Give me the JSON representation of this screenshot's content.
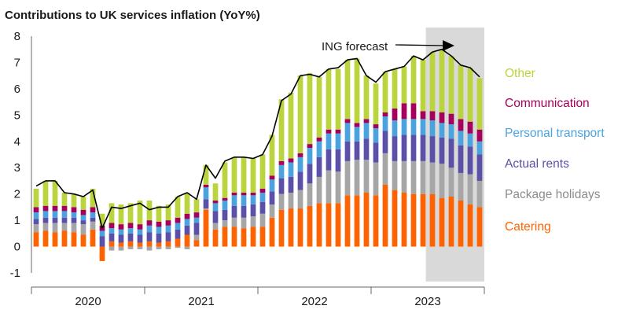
{
  "chart_data": {
    "type": "bar",
    "title": "Contributions to UK services inflation (YoY%)",
    "ylim": [
      -1,
      8
    ],
    "yticks": [
      8,
      7,
      6,
      5,
      4,
      3,
      2,
      1,
      0,
      -1
    ],
    "year_labels": [
      "2020",
      "2021",
      "2022",
      "2023"
    ],
    "months": [
      "Jan-2020",
      "Feb-2020",
      "Mar-2020",
      "Apr-2020",
      "May-2020",
      "Jun-2020",
      "Jul-2020",
      "Aug-2020",
      "Sep-2020",
      "Oct-2020",
      "Nov-2020",
      "Dec-2020",
      "Jan-2021",
      "Feb-2021",
      "Mar-2021",
      "Apr-2021",
      "May-2021",
      "Jun-2021",
      "Jul-2021",
      "Aug-2021",
      "Sep-2021",
      "Oct-2021",
      "Nov-2021",
      "Dec-2021",
      "Jan-2022",
      "Feb-2022",
      "Mar-2022",
      "Apr-2022",
      "May-2022",
      "Jun-2022",
      "Jul-2022",
      "Aug-2022",
      "Sep-2022",
      "Oct-2022",
      "Nov-2022",
      "Dec-2022",
      "Jan-2023",
      "Feb-2023",
      "Mar-2023",
      "Apr-2023",
      "May-2023",
      "Jun-2023",
      "Jul-2023",
      "Aug-2023",
      "Sep-2023",
      "Oct-2023",
      "Nov-2023",
      "Dec-2023"
    ],
    "series": [
      {
        "name": "Catering",
        "color": "#ff6200",
        "values": [
          0.55,
          0.6,
          0.55,
          0.6,
          0.55,
          0.45,
          0.65,
          -0.55,
          0.2,
          0.15,
          0.2,
          0.15,
          0.2,
          0.15,
          0.2,
          0.3,
          0.45,
          0.25,
          1.4,
          0.65,
          0.75,
          0.75,
          0.7,
          0.75,
          0.75,
          1.1,
          1.4,
          1.45,
          1.45,
          1.55,
          1.65,
          1.65,
          1.65,
          1.95,
          1.95,
          2.05,
          1.95,
          2.35,
          2.15,
          2.05,
          2.0,
          2.0,
          2.0,
          1.85,
          1.9,
          1.75,
          1.6,
          1.5
        ]
      },
      {
        "name": "Package holidays",
        "color": "#a6a6a6",
        "values": [
          0.3,
          0.3,
          0.35,
          0.3,
          0.35,
          0.4,
          0.3,
          0.0,
          -0.15,
          -0.15,
          -0.1,
          -0.1,
          -0.15,
          -0.1,
          -0.1,
          -0.05,
          -0.1,
          0.2,
          0.05,
          0.25,
          0.25,
          0.35,
          0.4,
          0.4,
          0.5,
          0.5,
          0.6,
          0.6,
          0.7,
          0.85,
          1.0,
          1.25,
          1.2,
          1.3,
          1.35,
          1.25,
          1.25,
          1.2,
          1.1,
          1.2,
          1.25,
          1.25,
          1.2,
          1.3,
          1.1,
          1.05,
          1.15,
          1.0
        ]
      },
      {
        "name": "Actual rents",
        "color": "#5a50a8",
        "values": [
          0.2,
          0.2,
          0.2,
          0.2,
          0.2,
          0.15,
          0.15,
          0.4,
          0.3,
          0.3,
          0.3,
          0.3,
          0.35,
          0.35,
          0.35,
          0.35,
          0.35,
          0.45,
          0.35,
          0.45,
          0.4,
          0.45,
          0.45,
          0.45,
          0.45,
          0.5,
          0.6,
          0.6,
          0.7,
          0.75,
          0.75,
          0.8,
          0.85,
          0.75,
          0.7,
          0.8,
          0.75,
          0.85,
          0.95,
          1.0,
          1.0,
          1.0,
          1.0,
          1.0,
          1.1,
          1.05,
          1.05,
          1.0
        ]
      },
      {
        "name": "Personal transport",
        "color": "#4aa3df",
        "values": [
          0.25,
          0.25,
          0.25,
          0.25,
          0.2,
          0.2,
          0.2,
          0.2,
          0.2,
          0.2,
          0.2,
          0.2,
          0.25,
          0.25,
          0.25,
          0.25,
          0.25,
          0.2,
          0.45,
          0.3,
          0.35,
          0.4,
          0.4,
          0.35,
          0.35,
          0.45,
          0.5,
          0.55,
          0.55,
          0.6,
          0.6,
          0.6,
          0.6,
          0.7,
          0.55,
          0.6,
          0.55,
          0.55,
          0.6,
          0.6,
          0.6,
          0.6,
          0.6,
          0.55,
          0.55,
          0.55,
          0.5,
          0.5
        ]
      },
      {
        "name": "Communication",
        "color": "#a6005c",
        "values": [
          0.2,
          0.2,
          0.2,
          0.2,
          0.2,
          0.2,
          0.2,
          0.2,
          0.2,
          0.2,
          0.2,
          0.2,
          0.2,
          0.2,
          0.2,
          0.2,
          0.2,
          0.2,
          0.1,
          0.1,
          0.1,
          0.1,
          0.1,
          0.1,
          0.15,
          0.15,
          0.15,
          0.15,
          0.15,
          0.15,
          0.15,
          0.15,
          0.15,
          0.15,
          0.15,
          0.15,
          0.15,
          0.15,
          0.45,
          0.6,
          0.6,
          0.3,
          0.35,
          0.4,
          0.4,
          0.45,
          0.45,
          0.45
        ]
      },
      {
        "name": "Other",
        "color": "#b9d43c",
        "values": [
          0.7,
          0.95,
          0.95,
          0.5,
          0.5,
          0.5,
          0.7,
          0.45,
          0.75,
          0.75,
          0.75,
          0.9,
          0.75,
          0.6,
          0.6,
          0.8,
          0.8,
          0.5,
          0.75,
          0.65,
          1.35,
          1.35,
          1.35,
          1.3,
          1.3,
          1.55,
          2.35,
          2.5,
          2.95,
          2.7,
          2.3,
          2.3,
          2.3,
          2.25,
          2.45,
          1.65,
          1.55,
          1.55,
          1.5,
          1.4,
          1.8,
          1.95,
          2.25,
          2.4,
          2.2,
          2.05,
          2.05,
          1.95
        ]
      }
    ],
    "total_line": [
      2.3,
      2.5,
      2.5,
      2.05,
      2.0,
      1.9,
      2.15,
      0.7,
      1.5,
      1.45,
      1.55,
      1.65,
      1.4,
      1.5,
      1.5,
      1.9,
      2.05,
      1.8,
      3.1,
      2.6,
      3.25,
      3.4,
      3.4,
      3.35,
      3.5,
      4.2,
      5.55,
      5.8,
      6.5,
      6.55,
      6.45,
      6.75,
      6.8,
      7.1,
      7.15,
      6.5,
      6.25,
      6.65,
      6.75,
      6.85,
      7.25,
      7.1,
      7.4,
      7.5,
      7.25,
      6.9,
      6.8,
      6.45
    ],
    "forecast": {
      "label": "ING forecast",
      "start_index": 42,
      "shade_color": "#d9d9d9"
    },
    "legend": [
      {
        "label": "Other",
        "color": "#b9d43c"
      },
      {
        "label": "Communication",
        "color": "#a6005c"
      },
      {
        "label": "Personal transport",
        "color": "#4aa3df"
      },
      {
        "label": "Actual rents",
        "color": "#5a50a8"
      },
      {
        "label": "Package holidays",
        "color": "#8c8c8c"
      },
      {
        "label": "Catering",
        "color": "#ff6200"
      }
    ],
    "legend_placement": "right",
    "grid": false
  }
}
